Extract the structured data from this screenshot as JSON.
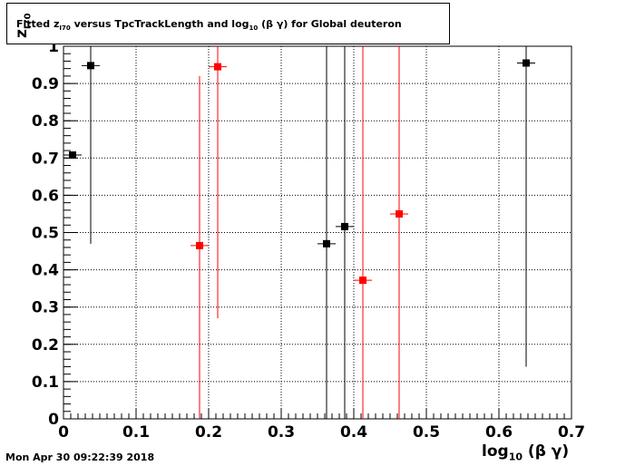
{
  "title": {
    "prefix": "Fitted  z",
    "sub": "I70",
    "middle": "  versus TpcTrackLength and log",
    "sub2": "10",
    "suffix": " (β γ) for Global deuteron"
  },
  "timestamp": "Mon Apr 30 09:22:39 2018",
  "x_axis_label": {
    "main": "log",
    "sub": "10",
    "rest": " (β γ)"
  },
  "y_axis_label": {
    "main": "z",
    "sub": "I70"
  },
  "colors": {
    "series_black": "#000000",
    "series_red": "#ff0000"
  },
  "chart_data": {
    "type": "scatter",
    "xlim": [
      0,
      0.7
    ],
    "ylim": [
      0,
      1
    ],
    "x_ticks": [
      0,
      0.1,
      0.2,
      0.3,
      0.4,
      0.5,
      0.6,
      0.7
    ],
    "x_tick_labels": [
      "0",
      "0.1",
      "0.2",
      "0.3",
      "0.4",
      "0.5",
      "0.6",
      "0.7"
    ],
    "y_ticks": [
      0,
      0.1,
      0.2,
      0.3,
      0.4,
      0.5,
      0.6,
      0.7,
      0.8,
      0.9,
      1
    ],
    "y_tick_labels": [
      "0",
      "0.1",
      "0.2",
      "0.3",
      "0.4",
      "0.5",
      "0.6",
      "0.7",
      "0.8",
      "0.9",
      "1"
    ],
    "grid": true,
    "series": [
      {
        "color": "#000000",
        "points": [
          {
            "x": 0.0125,
            "y": 0.708,
            "xerr": 0.0125,
            "ylo": 0.708,
            "yhi": 0.708
          },
          {
            "x": 0.0375,
            "y": 0.948,
            "xerr": 0.0125,
            "ylo": 0.47,
            "yhi": 1.0
          },
          {
            "x": 0.3625,
            "y": 0.47,
            "xerr": 0.0125,
            "ylo": 0.0,
            "yhi": 1.0
          },
          {
            "x": 0.3875,
            "y": 0.516,
            "xerr": 0.0125,
            "ylo": 0.0,
            "yhi": 1.0
          },
          {
            "x": 0.6375,
            "y": 0.955,
            "xerr": 0.0125,
            "ylo": 0.14,
            "yhi": 1.0
          }
        ]
      },
      {
        "color": "#ff0000",
        "points": [
          {
            "x": 0.1875,
            "y": 0.465,
            "xerr": 0.0125,
            "ylo": 0.0,
            "yhi": 0.92
          },
          {
            "x": 0.2125,
            "y": 0.945,
            "xerr": 0.0125,
            "ylo": 0.27,
            "yhi": 1.0
          },
          {
            "x": 0.4125,
            "y": 0.372,
            "xerr": 0.0125,
            "ylo": 0.0,
            "yhi": 1.0
          },
          {
            "x": 0.4625,
            "y": 0.55,
            "xerr": 0.0125,
            "ylo": 0.0,
            "yhi": 1.0
          }
        ]
      }
    ]
  }
}
